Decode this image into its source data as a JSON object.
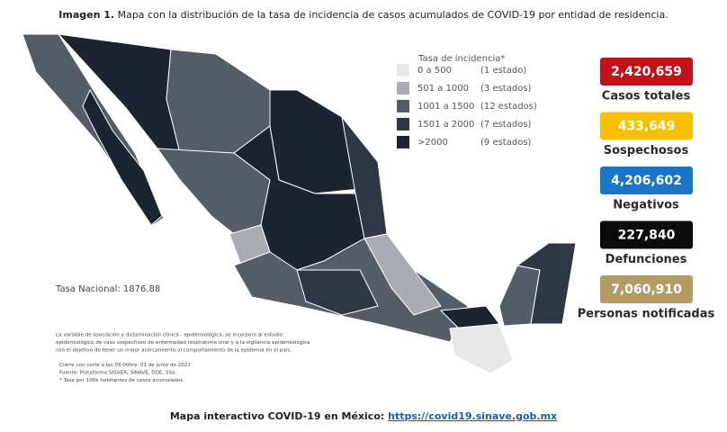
{
  "title": {
    "label": "Imagen 1.",
    "text": "Mapa con la distribución de la tasa de incidencia de casos acumulados de COVID-19 por entidad de residencia."
  },
  "legend": {
    "title": "Tasa de incidencia*",
    "items": [
      {
        "range": "0 a 500",
        "states": "(1 estado)",
        "color": "#e8e8e8"
      },
      {
        "range": "501 a 1000",
        "states": "(3 estados)",
        "color": "#a9adb3"
      },
      {
        "range": "1001 a 1500",
        "states": "(12 estados)",
        "color": "#545c68"
      },
      {
        "range": "1501 a 2000",
        "states": "(7 estados)",
        "color": "#2e3744"
      },
      {
        "range": ">2000",
        "states": "(9 estados)",
        "color": "#1c2331"
      }
    ]
  },
  "stats": [
    {
      "value": "2,420,659",
      "label": "Casos totales",
      "color": "#c0121b"
    },
    {
      "value": "433,649",
      "label": "Sospechosos",
      "color": "#f6c000"
    },
    {
      "value": "4,206,602",
      "label": "Negativos",
      "color": "#1b74c4"
    },
    {
      "value": "227,840",
      "label": "Defunciones",
      "color": "#0b0b0b"
    },
    {
      "value": "7,060,910",
      "label": "Personas notificadas",
      "color": "#b49a64"
    }
  ],
  "national_rate": "Tasa Nacional: 1876.88",
  "notes": [
    "La variable de asociación y dictaminación clínica - epidemiológica, se incorporó al estudio",
    "epidemiológico de caso sospechoso de enfermedad respiratoria viral y a la vigilancia epidemiológica",
    "con el objetivo de tener un mejor acercamiento al comportamiento de la epidemia en el país.",
    "Cierre con corte a las 09:00hrs. 01 de junio de 2021",
    "Fuente: Plataforma SISVER, SINAVE, DGE, SSa.",
    "* Tasa por 100k habitantes de casos acumulados."
  ],
  "footer": {
    "text": "Mapa interactivo COVID-19 en México:",
    "link": "https://covid19.sinave.gob.mx"
  }
}
